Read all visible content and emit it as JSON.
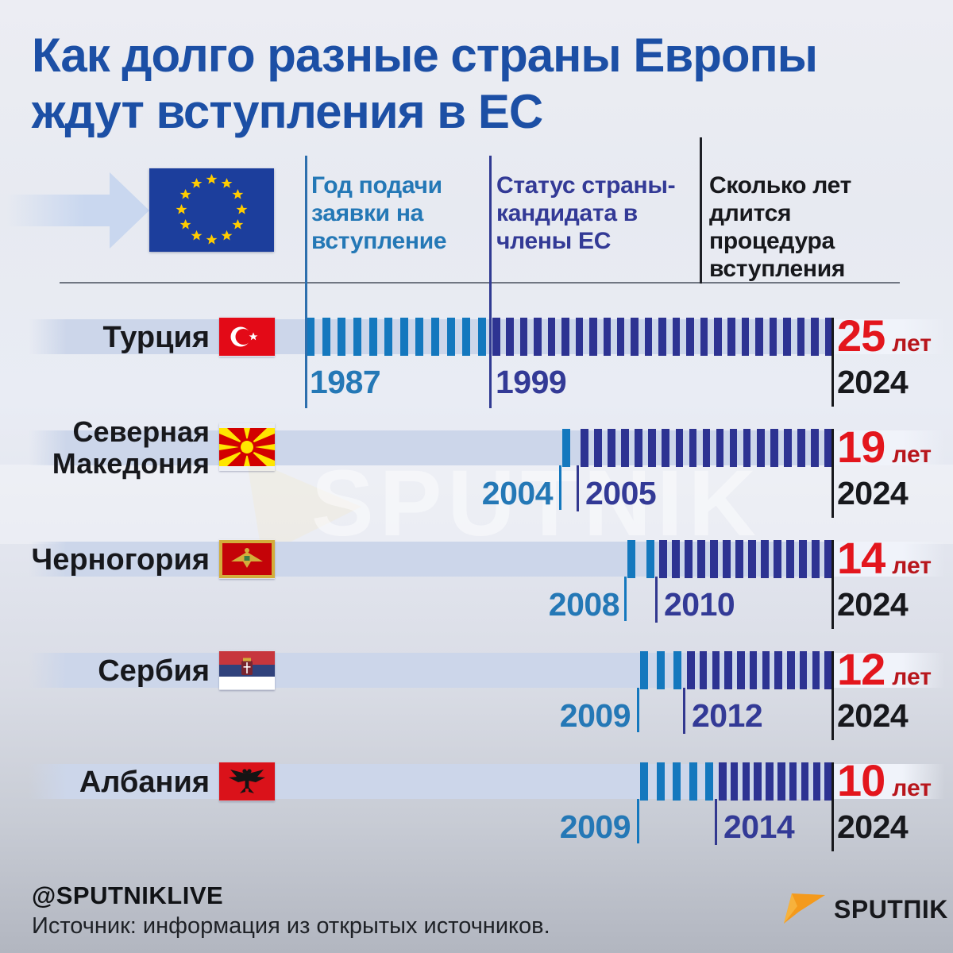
{
  "title": {
    "line1": "Как долго разные страны Европы",
    "line2": "ждут вступления в ЕС"
  },
  "legend": {
    "col1": "Год подачи заявки на вступление",
    "col2": "Статус страны-кандидата в члены ЕС",
    "col3": "Сколько лет длится процедура вступления"
  },
  "rows": [
    {
      "name": "Турция",
      "flag": "turkey-flag",
      "applied_year": "1987",
      "candidate_year": "1999",
      "end_year": "2024",
      "duration_value": "25",
      "duration_unit": "лет"
    },
    {
      "name": "Северная Македония",
      "flag": "north-macedonia-flag",
      "applied_year": "2004",
      "candidate_year": "2005",
      "end_year": "2024",
      "duration_value": "19",
      "duration_unit": "лет"
    },
    {
      "name": "Черногория",
      "flag": "montenegro-flag",
      "applied_year": "2008",
      "candidate_year": "2010",
      "end_year": "2024",
      "duration_value": "14",
      "duration_unit": "лет"
    },
    {
      "name": "Сербия",
      "flag": "serbia-flag",
      "applied_year": "2009",
      "candidate_year": "2012",
      "end_year": "2024",
      "duration_value": "12",
      "duration_unit": "лет"
    },
    {
      "name": "Албания",
      "flag": "albania-flag",
      "applied_year": "2009",
      "candidate_year": "2014",
      "end_year": "2024",
      "duration_value": "10",
      "duration_unit": "лет"
    }
  ],
  "watermark": "SPUTNIK",
  "footer": {
    "handle": "@SPUTNIKLIVE",
    "source": "Источник: информация из открытых источников.",
    "brand": "SPUTПIK"
  },
  "colors": {
    "title_blue": "#1c4fa5",
    "applied_blue": "#2478b6",
    "candidate_indigo": "#333a96",
    "tick_light": "#1478be",
    "tick_dark": "#2d3392",
    "band": "#ccd6ea",
    "duration_red": "#e3161d",
    "unit_red": "#b8161c",
    "ink": "#17181c",
    "eu_blue": "#1c3e9c",
    "star_gold": "#ffcc00",
    "sputnik_orange": "#f49a1c"
  },
  "chart_data": {
    "type": "bar",
    "title": "Как долго разные страны Европы ждут вступления в ЕС",
    "categories": [
      "Турция",
      "Северная Македония",
      "Черногория",
      "Сербия",
      "Албания"
    ],
    "series": [
      {
        "name": "Год подачи заявки на вступление",
        "values": [
          1987,
          2004,
          2008,
          2009,
          2009
        ]
      },
      {
        "name": "Статус страны-кандидата в члены ЕС",
        "values": [
          1999,
          2005,
          2010,
          2012,
          2014
        ]
      },
      {
        "name": "Сколько лет длится процедура вступления (лет)",
        "values": [
          25,
          19,
          14,
          12,
          10
        ]
      }
    ],
    "end_year": 2024,
    "legend_position": "top",
    "grid": false
  }
}
